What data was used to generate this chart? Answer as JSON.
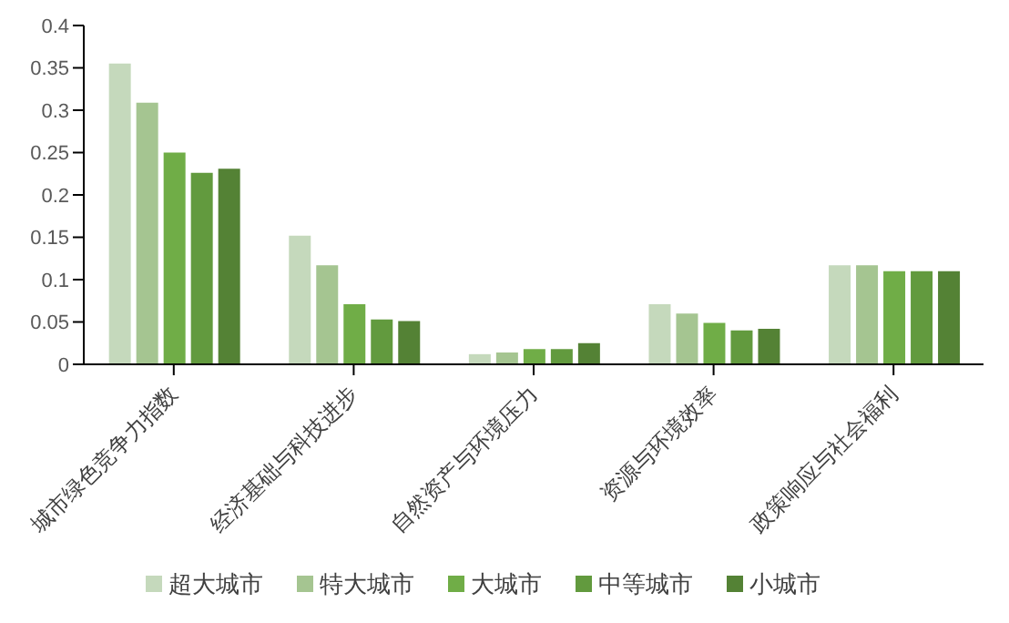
{
  "chart_data": {
    "type": "bar",
    "categories": [
      "城市绿色竞争力指数",
      "经济基础与科技进步",
      "自然资产与环境压力",
      "资源与环境效率",
      "政策响应与社会福利"
    ],
    "series": [
      {
        "name": "超大城市",
        "color": "#c5d9bc",
        "values": [
          0.355,
          0.152,
          0.012,
          0.071,
          0.117
        ]
      },
      {
        "name": "特大城市",
        "color": "#a5c591",
        "values": [
          0.309,
          0.117,
          0.014,
          0.06,
          0.117
        ]
      },
      {
        "name": "大城市",
        "color": "#70ad47",
        "values": [
          0.25,
          0.071,
          0.018,
          0.049,
          0.11
        ]
      },
      {
        "name": "中等城市",
        "color": "#629a3e",
        "values": [
          0.226,
          0.053,
          0.018,
          0.04,
          0.11
        ]
      },
      {
        "name": "小城市",
        "color": "#548235",
        "values": [
          0.231,
          0.051,
          0.025,
          0.042,
          0.11
        ]
      }
    ],
    "ylim": [
      0,
      0.4
    ],
    "yticks": [
      0,
      0.05,
      0.1,
      0.15,
      0.2,
      0.25,
      0.3,
      0.35,
      0.4
    ],
    "grid": false,
    "legend": "bottom"
  }
}
